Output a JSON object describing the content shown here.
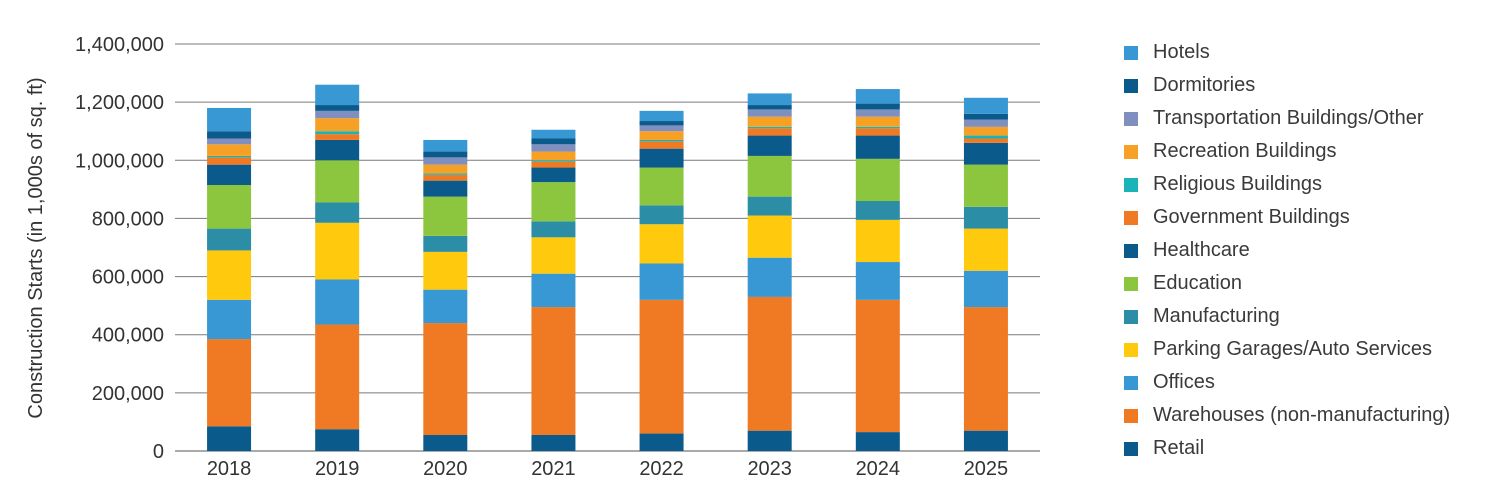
{
  "chart_data": {
    "type": "bar",
    "stacked": true,
    "ylabel": "Construction Starts (in 1,000s of sq. ft)",
    "ylim": [
      0,
      1400000
    ],
    "yticks": [
      0,
      200000,
      400000,
      600000,
      800000,
      1000000,
      1200000,
      1400000
    ],
    "ytick_labels": [
      "0",
      "200,000",
      "400,000",
      "600,000",
      "800,000",
      "1,000,000",
      "1,200,000",
      "1,400,000"
    ],
    "grid": true,
    "legend_position": "right",
    "categories": [
      "2018",
      "2019",
      "2020",
      "2021",
      "2022",
      "2023",
      "2024",
      "2025"
    ],
    "series": [
      {
        "name": "Retail",
        "color": "#0b5a8c",
        "values": [
          85000,
          75000,
          55000,
          55000,
          60000,
          70000,
          65000,
          70000
        ]
      },
      {
        "name": "Warehouses (non-manufacturing)",
        "color": "#f07a23",
        "values": [
          300000,
          360000,
          385000,
          440000,
          460000,
          460000,
          455000,
          425000
        ]
      },
      {
        "name": "Offices",
        "color": "#3798d3",
        "values": [
          135000,
          155000,
          115000,
          115000,
          125000,
          135000,
          130000,
          125000
        ]
      },
      {
        "name": "Parking Garages/Auto Services",
        "color": "#ffc90d",
        "values": [
          170000,
          195000,
          130000,
          125000,
          135000,
          145000,
          145000,
          145000
        ]
      },
      {
        "name": "Manufacturing",
        "color": "#2b8ea6",
        "values": [
          75000,
          70000,
          55000,
          55000,
          65000,
          65000,
          65000,
          75000
        ]
      },
      {
        "name": "Education",
        "color": "#8cc63f",
        "values": [
          150000,
          145000,
          135000,
          135000,
          130000,
          140000,
          145000,
          145000
        ]
      },
      {
        "name": "Healthcare",
        "color": "#0b5a8c",
        "values": [
          70000,
          70000,
          55000,
          50000,
          65000,
          70000,
          80000,
          75000
        ]
      },
      {
        "name": "Government Buildings",
        "color": "#f07a23",
        "values": [
          25000,
          20000,
          20000,
          20000,
          25000,
          25000,
          25000,
          15000
        ]
      },
      {
        "name": "Religious Buildings",
        "color": "#1ab3b8",
        "values": [
          5000,
          10000,
          5000,
          5000,
          5000,
          5000,
          5000,
          10000
        ]
      },
      {
        "name": "Recreation Buildings",
        "color": "#f6a125",
        "values": [
          40000,
          45000,
          30000,
          30000,
          30000,
          35000,
          35000,
          30000
        ]
      },
      {
        "name": "Transportation Buildings/Other",
        "color": "#7f8fbf",
        "values": [
          20000,
          25000,
          25000,
          25000,
          20000,
          25000,
          25000,
          25000
        ]
      },
      {
        "name": "Dormitories",
        "color": "#0b5a8c",
        "values": [
          25000,
          20000,
          20000,
          20000,
          15000,
          15000,
          20000,
          20000
        ]
      },
      {
        "name": "Hotels",
        "color": "#3798d3",
        "values": [
          80000,
          70000,
          40000,
          30000,
          35000,
          40000,
          50000,
          55000
        ]
      }
    ]
  }
}
